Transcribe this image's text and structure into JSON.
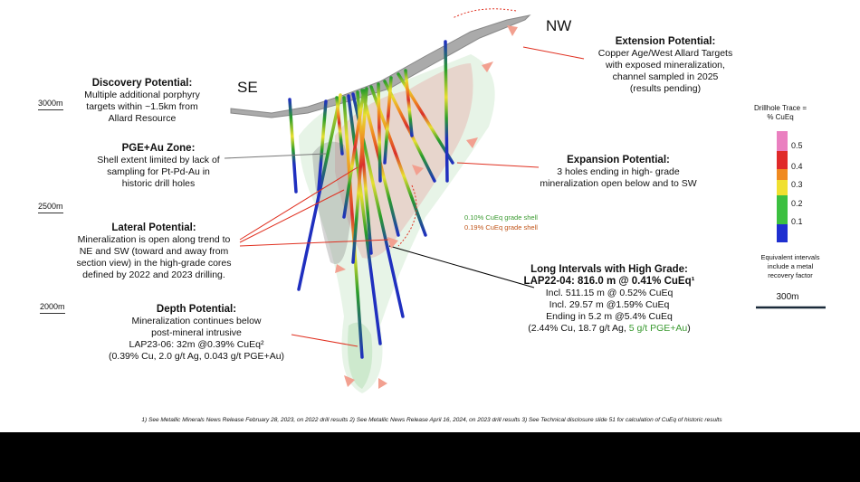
{
  "labels": {
    "nw": "NW",
    "se": "SE"
  },
  "elevations": [
    "3000m",
    "2500m",
    "2000m"
  ],
  "callouts": {
    "extension": {
      "title": "Extension Potential:",
      "lines": [
        "Copper Age/West Allard Targets",
        "with exposed mineralization,",
        "channel sampled in 2025",
        "(results pending)"
      ]
    },
    "discovery": {
      "title": "Discovery Potential:",
      "lines": [
        "Multiple additional porphyry",
        "targets within ~1.5km from",
        "Allard Resource"
      ]
    },
    "pge": {
      "title": "PGE+Au Zone:",
      "lines": [
        "Shell extent limited by lack of",
        "sampling for Pt-Pd-Au  in",
        "historic drill holes"
      ]
    },
    "expansion": {
      "title": "Expansion Potential:",
      "lines": [
        "3 holes ending in high- grade",
        "mineralization open below and to SW"
      ]
    },
    "lateral": {
      "title": "Lateral Potential:",
      "lines": [
        "Mineralization is open along trend to",
        "NE and SW (toward and away from",
        "section view) in the high-grade cores",
        "defined by 2022 and 2023 drilling."
      ]
    },
    "depth": {
      "title": "Depth Potential:",
      "lines": [
        "Mineralization continues below",
        "post-mineral intrusive",
        "LAP23-06: 32m @0.39% CuEq²",
        "(0.39% Cu, 2.0 g/t Ag, 0.043 g/t PGE+Au)"
      ]
    },
    "long": {
      "title": "Long Intervals with High Grade:",
      "subtitle": "LAP22-04: 816.0 m @ 0.41% CuEq¹",
      "lines": [
        "Incl. 511.15 m @ 0.52% CuEq",
        "Incl. 29.57 m @1.59% CuEq",
        "Ending in 5.2 m @5.4% CuEq"
      ],
      "last": [
        "(2.44% Cu, 18.7 g/t Ag, ",
        "5 g/t PGE+Au",
        ")"
      ]
    }
  },
  "shells": [
    "0.10% CuEq grade shell",
    "0.19% CuEq grade shell"
  ],
  "legend": {
    "title": [
      "Drillhole Trace =",
      "% CuEq"
    ],
    "values": [
      0.5,
      0.4,
      0.3,
      0.2,
      0.1
    ],
    "note": [
      "Equivalent intervals",
      "include a metal",
      "recovery factor"
    ],
    "scale": "300m"
  },
  "footnote": "1) See Metallic Minerals News Release February 28, 2023, on 2022 drill results  2) See Metallic News Release April 16, 2024, on 2023 drill results 3) See Technical disclosure slide 51 for calculation of CuEq of historic results"
}
